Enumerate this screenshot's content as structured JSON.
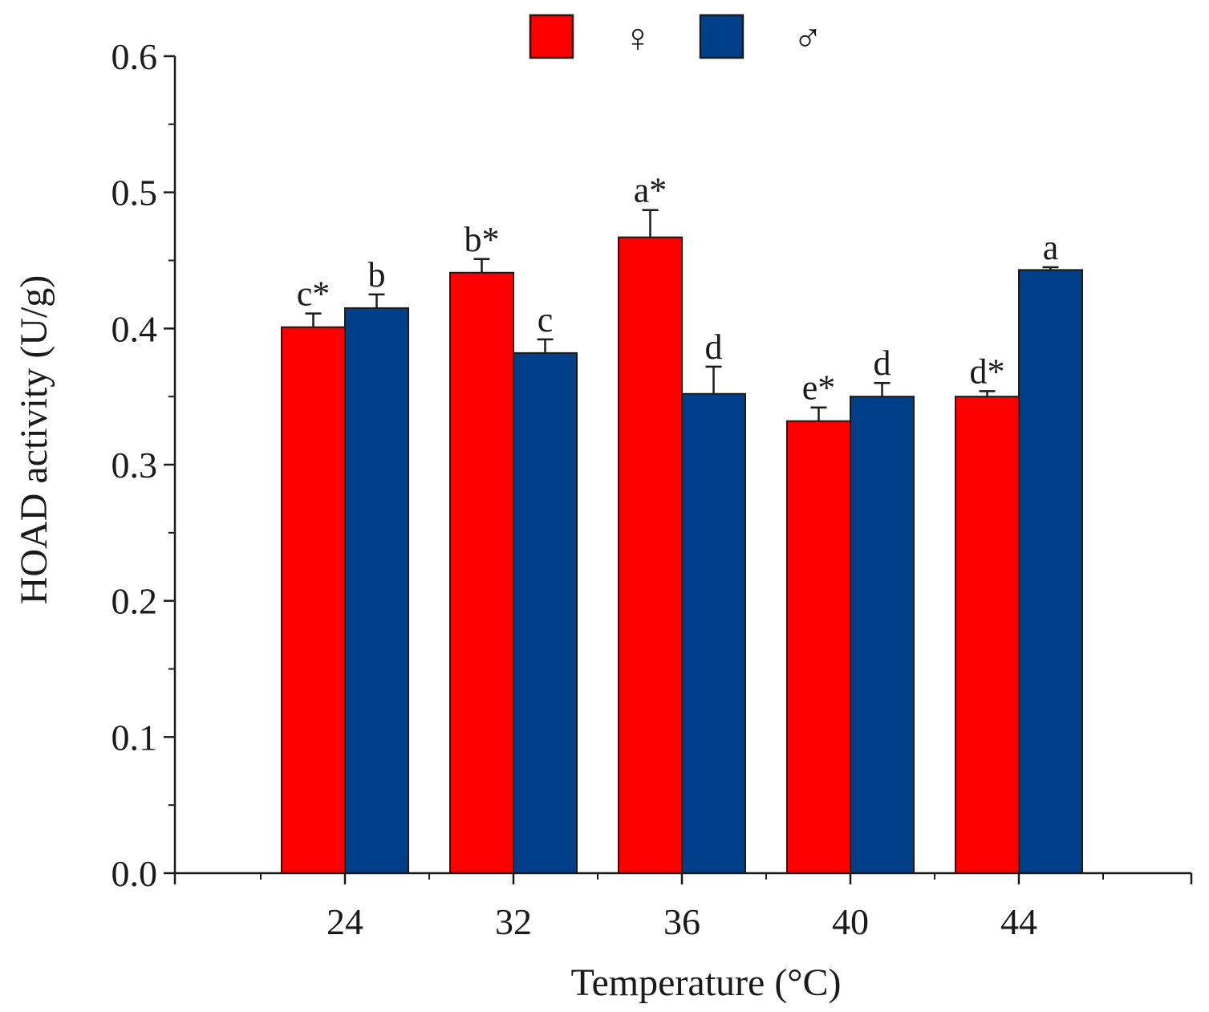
{
  "chart_data": {
    "type": "bar",
    "title": "",
    "xlabel": "Temperature (°C)",
    "ylabel": "HOAD activity (U/g)",
    "categories": [
      "24",
      "32",
      "36",
      "40",
      "44"
    ],
    "ylim": [
      0,
      0.6
    ],
    "yticks": [
      "0.0",
      "0.1",
      "0.2",
      "0.3",
      "0.4",
      "0.5",
      "0.6"
    ],
    "legend_position": "top-center",
    "series": [
      {
        "name": "♀",
        "color": "#ff0000",
        "values": [
          0.401,
          0.441,
          0.467,
          0.332,
          0.35
        ],
        "errors": [
          0.01,
          0.01,
          0.02,
          0.01,
          0.004
        ],
        "labels": [
          "c*",
          "b*",
          "a*",
          "e*",
          "d*"
        ]
      },
      {
        "name": "♂",
        "color": "#003f8a",
        "values": [
          0.415,
          0.382,
          0.352,
          0.35,
          0.443
        ],
        "errors": [
          0.01,
          0.01,
          0.02,
          0.01,
          0.002
        ],
        "labels": [
          "b",
          "c",
          "d",
          "d",
          "a"
        ]
      }
    ]
  }
}
